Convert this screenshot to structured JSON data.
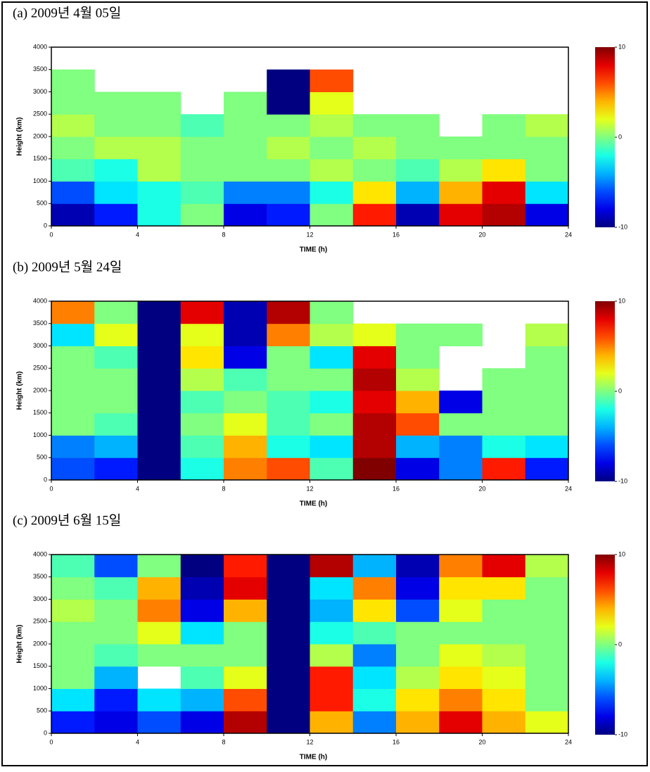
{
  "chart_data": [
    {
      "type": "heatmap",
      "title": "(a) 2009년 4월 05일",
      "xlabel": "TIME (h)",
      "ylabel": "Height (km)",
      "xlim": [
        0,
        24
      ],
      "xticks": [
        0,
        4,
        8,
        12,
        16,
        20,
        24
      ],
      "ylim": [
        0,
        4000
      ],
      "yticks": [
        0,
        500,
        1000,
        1500,
        2000,
        2500,
        3000,
        3500,
        4000
      ],
      "xbins": [
        0,
        2,
        4,
        6,
        8,
        10,
        12,
        14,
        16,
        18,
        20,
        22,
        24
      ],
      "ybins": [
        0,
        500,
        1000,
        1500,
        2000,
        2500,
        3000,
        3500,
        4000
      ],
      "clim": [
        -10,
        10
      ],
      "cticks": [
        -10,
        0,
        10
      ],
      "colormap": "jet",
      "values": [
        [
          -9,
          -7,
          -2,
          0,
          -8,
          -7,
          0,
          7,
          -9,
          8,
          9,
          -8
        ],
        [
          -6,
          -3,
          -2,
          -1,
          -5,
          -5,
          -2,
          3,
          -4,
          4,
          8,
          -3
        ],
        [
          -1,
          -2,
          1,
          0,
          0,
          0,
          1,
          0,
          -1,
          1,
          3,
          0
        ],
        [
          0,
          1,
          1,
          0,
          0,
          1,
          0,
          1,
          0,
          0,
          0,
          0
        ],
        [
          1,
          0,
          0,
          -1,
          0,
          0,
          1,
          0,
          0,
          null,
          0,
          1
        ],
        [
          0,
          0,
          0,
          null,
          0,
          -10,
          2,
          null,
          null,
          null,
          null,
          null
        ],
        [
          0,
          null,
          null,
          null,
          null,
          -10,
          6,
          null,
          null,
          null,
          null,
          null
        ],
        [
          null,
          null,
          null,
          null,
          null,
          null,
          null,
          null,
          null,
          null,
          null,
          null
        ]
      ]
    },
    {
      "type": "heatmap",
      "title": "(b) 2009년 5월 24일",
      "xlabel": "TIME (h)",
      "ylabel": "Height (km)",
      "xlim": [
        0,
        24
      ],
      "xticks": [
        0,
        4,
        8,
        12,
        16,
        20,
        24
      ],
      "ylim": [
        0,
        4000
      ],
      "yticks": [
        0,
        500,
        1000,
        1500,
        2000,
        2500,
        3000,
        3500,
        4000
      ],
      "xbins": [
        0,
        2,
        4,
        6,
        8,
        10,
        12,
        14,
        16,
        18,
        20,
        22,
        24
      ],
      "ybins": [
        0,
        500,
        1000,
        1500,
        2000,
        2500,
        3000,
        3500,
        4000
      ],
      "clim": [
        -10,
        10
      ],
      "cticks": [
        -10,
        0,
        10
      ],
      "colormap": "jet",
      "values": [
        [
          -6,
          -7,
          -10,
          -2,
          5,
          6,
          -1,
          10,
          -8,
          -5,
          7,
          -7
        ],
        [
          -5,
          -4,
          -10,
          -1,
          4,
          -2,
          -3,
          9,
          -4,
          -5,
          -2,
          -3
        ],
        [
          0,
          -1,
          -10,
          0,
          2,
          -1,
          0,
          9,
          6,
          0,
          0,
          0
        ],
        [
          0,
          0,
          -10,
          -1,
          0,
          -1,
          -2,
          8,
          4,
          -8,
          0,
          0
        ],
        [
          0,
          0,
          -10,
          1,
          -1,
          0,
          0,
          9,
          1,
          null,
          0,
          0
        ],
        [
          0,
          -1,
          -10,
          3,
          -8,
          0,
          -3,
          8,
          0,
          null,
          null,
          0
        ],
        [
          -3,
          2,
          -10,
          2,
          -9,
          5,
          1,
          2,
          0,
          0,
          null,
          1
        ],
        [
          5,
          0,
          -10,
          8,
          -9,
          9,
          0,
          null,
          null,
          null,
          null,
          null
        ]
      ]
    },
    {
      "type": "heatmap",
      "title": "(c) 2009년 6월 15일",
      "xlabel": "TIME (h)",
      "ylabel": "Height (km)",
      "xlim": [
        0,
        24
      ],
      "xticks": [
        0,
        4,
        8,
        12,
        16,
        20,
        24
      ],
      "ylim": [
        0,
        4000
      ],
      "yticks": [
        0,
        500,
        1000,
        1500,
        2000,
        2500,
        3000,
        3500,
        4000
      ],
      "xbins": [
        0,
        2,
        4,
        6,
        8,
        10,
        12,
        14,
        16,
        18,
        20,
        22,
        24
      ],
      "ybins": [
        0,
        500,
        1000,
        1500,
        2000,
        2500,
        3000,
        3500,
        4000
      ],
      "clim": [
        -10,
        10
      ],
      "cticks": [
        -10,
        0,
        10
      ],
      "colormap": "jet",
      "values": [
        [
          -7,
          -8,
          -6,
          -8,
          9,
          -10,
          4,
          -5,
          4,
          8,
          4,
          2
        ],
        [
          -3,
          -7,
          -3,
          -4,
          6,
          -10,
          7,
          -2,
          3,
          5,
          3,
          0
        ],
        [
          0,
          -4,
          null,
          -1,
          2,
          -10,
          7,
          -3,
          1,
          3,
          2,
          0
        ],
        [
          0,
          -1,
          0,
          0,
          0,
          -10,
          1,
          -5,
          0,
          2,
          1,
          0
        ],
        [
          0,
          0,
          2,
          -3,
          0,
          -10,
          -2,
          -1,
          0,
          0,
          0,
          0
        ],
        [
          1,
          0,
          5,
          -8,
          4,
          -10,
          -4,
          3,
          -6,
          2,
          0,
          0
        ],
        [
          0,
          -1,
          4,
          -9,
          8,
          -10,
          -3,
          5,
          -8,
          3,
          3,
          0
        ],
        [
          -1,
          -6,
          0,
          -10,
          7,
          -10,
          9,
          -4,
          -9,
          5,
          8,
          1
        ]
      ]
    }
  ]
}
